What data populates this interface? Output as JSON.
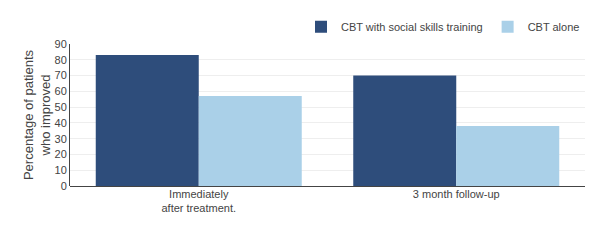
{
  "chart_data": {
    "type": "bar",
    "categories": [
      "Immediately\nafter treatment.",
      "3 month follow-up"
    ],
    "series": [
      {
        "name": "CBT with social skills training",
        "color": "#2e4d7b",
        "values": [
          83,
          70
        ]
      },
      {
        "name": "CBT alone",
        "color": "#aad0e8",
        "values": [
          57,
          38
        ]
      }
    ],
    "ylabel": "Percentage of patients\nwho improved",
    "ylim": [
      0,
      90
    ],
    "yticks": [
      0,
      10,
      20,
      30,
      40,
      50,
      60,
      70,
      80,
      90
    ],
    "grid": true,
    "legend": "upper right"
  }
}
